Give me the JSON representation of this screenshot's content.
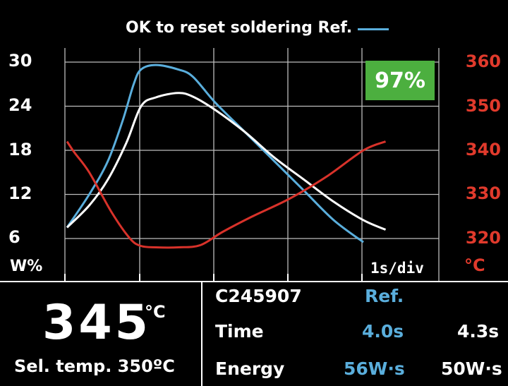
{
  "legend": {
    "label": "OK to reset soldering Ref.",
    "line_color": "#5aaedc"
  },
  "match_badge": {
    "text": "97%",
    "color": "#4caf3f"
  },
  "axes": {
    "left_unit": "W%",
    "right_unit": "°C",
    "time_scale": "1s/div",
    "left_ticks": [
      "30",
      "24",
      "18",
      "12",
      "6"
    ],
    "right_ticks": [
      "360",
      "350",
      "340",
      "330",
      "320"
    ]
  },
  "chart_data": {
    "type": "line",
    "x_divisions": 5,
    "ylim_left": [
      3,
      30
    ],
    "ylim_right": [
      315,
      360
    ],
    "grid": true,
    "series": [
      {
        "name": "Ref.",
        "axis": "left",
        "color": "#5aaedc",
        "x": [
          0,
          0.3,
          0.55,
          0.75,
          0.9,
          1.0,
          1.2,
          1.5,
          1.7,
          2.0,
          2.4,
          2.8,
          3.2,
          3.6,
          4.0
        ],
        "y": [
          7.5,
          12,
          16.5,
          22,
          27,
          29,
          29.6,
          29,
          28,
          24.5,
          20.5,
          16.5,
          12.5,
          8.5,
          5.5
        ]
      },
      {
        "name": "",
        "axis": "left",
        "color": "#ffffff",
        "x": [
          0,
          0.3,
          0.55,
          0.8,
          1.0,
          1.2,
          1.5,
          1.7,
          2.0,
          2.4,
          2.8,
          3.2,
          3.6,
          4.0,
          4.3
        ],
        "y": [
          7.5,
          10.5,
          14,
          19,
          24,
          25.2,
          25.8,
          25.3,
          23.5,
          20.5,
          17,
          14,
          11,
          8.5,
          7.2
        ]
      },
      {
        "name": "",
        "axis": "right",
        "color": "#d8322a",
        "x": [
          0,
          0.1,
          0.3,
          0.6,
          0.85,
          1.0,
          1.2,
          1.5,
          1.8,
          2.1,
          2.5,
          3.0,
          3.5,
          4.0,
          4.3
        ],
        "y": [
          342,
          339.5,
          335,
          326,
          320,
          318.3,
          318,
          318,
          318.5,
          321.5,
          325,
          329,
          334,
          340,
          342
        ]
      }
    ]
  },
  "measurement": {
    "current_temp": "345",
    "current_temp_unit": "°C",
    "selected_temp_label": "Sel. temp. 350ºC"
  },
  "table": {
    "profile_id": "C245907",
    "ref_header": "Ref.",
    "rows": [
      {
        "label": "Time",
        "ref": "4.0s",
        "current": "4.3s"
      },
      {
        "label": "Energy",
        "ref": "56W·s",
        "current": "50W·s"
      }
    ]
  }
}
